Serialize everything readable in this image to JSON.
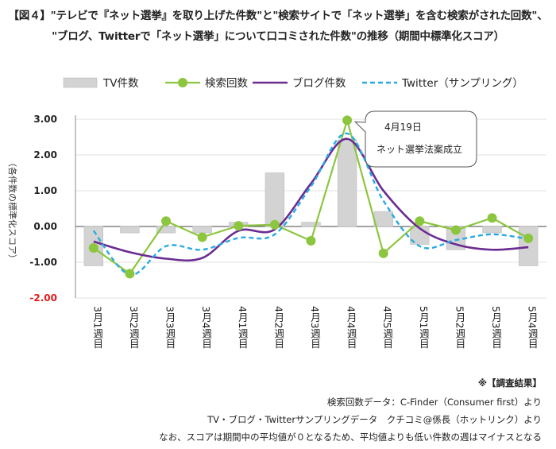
{
  "title_lines": [
    "【図４】\"テレビで『ネット選挙』を取り上げた件数\"と\"検索サイトで「ネット選挙」を含む検索がされた回数\"、",
    "\"ブログ、Twitterで「ネット選挙」について口コミされた件数\"の推移（期間中標準化スコア）"
  ],
  "notes": [
    "※【調査結果】",
    "検索回数データ：C-Finder（Consumer first）より",
    "TV・ブログ・Twitterサンプリングデータ　クチコミ@係長（ホットリンク）より",
    "なお、スコアは期間中の平均値が０となるため、平均値よりも低い件数の週はマイナスとなる"
  ],
  "callout": {
    "line1": "4月19日",
    "line2": "ネット選挙法案成立"
  },
  "colors": {
    "bar": "#d3d3d3",
    "search": "#8cc63f",
    "blog": "#6a2c91",
    "twitter": "#29abe2",
    "negative": "#e01b1b"
  },
  "chart_data": {
    "type": "bar+line",
    "ylabel": "（各件数の標準化スコア）",
    "ylim": [
      -2.0,
      3.0
    ],
    "yticks": [
      "3.00",
      "2.00",
      "1.00",
      "0.00",
      "-1.00",
      "-2.00"
    ],
    "yticks_values": [
      3,
      2,
      1,
      0,
      -1,
      -2
    ],
    "legend_position": "top",
    "categories": [
      "3月1週目",
      "3月2週目",
      "3月3週目",
      "3月4週目",
      "4月1週目",
      "4月2週目",
      "4月3週目",
      "4月4週目",
      "4月5週目",
      "5月1週目",
      "5月2週目",
      "5月3週目",
      "5月4週目"
    ],
    "series": [
      {
        "name": "TV件数",
        "kind": "bar",
        "values": [
          -1.1,
          -0.18,
          -0.18,
          -0.18,
          0.12,
          1.5,
          0.12,
          2.42,
          0.42,
          -0.5,
          -0.65,
          -0.18,
          -1.1
        ]
      },
      {
        "name": "検索回数",
        "kind": "line-marker",
        "values": [
          -0.6,
          -1.32,
          0.15,
          -0.3,
          0.02,
          0.05,
          -0.4,
          2.97,
          -0.75,
          0.15,
          -0.1,
          0.24,
          -0.33
        ]
      },
      {
        "name": "ブログ件数",
        "kind": "smooth-line",
        "values": [
          -0.42,
          -0.72,
          -0.9,
          -0.88,
          -0.12,
          -0.08,
          1.2,
          2.45,
          1.0,
          -0.05,
          -0.5,
          -0.65,
          -0.58
        ]
      },
      {
        "name": "Twitter（サンプリング）",
        "kind": "dashed-line",
        "values": [
          -0.12,
          -1.35,
          -0.55,
          -0.65,
          -0.32,
          -0.22,
          1.12,
          2.6,
          0.72,
          -0.55,
          -0.38,
          -0.22,
          -0.35
        ]
      }
    ]
  }
}
